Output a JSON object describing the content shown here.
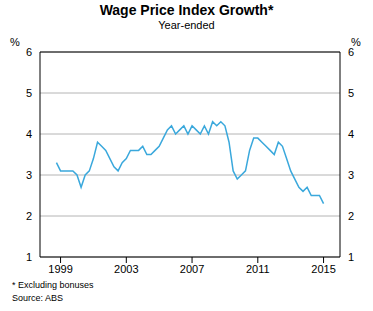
{
  "chart_data": {
    "type": "line",
    "title": "Wage Price Index Growth*",
    "subtitle": "Year-ended",
    "y_label": "%",
    "notes": [
      "* Excluding bonuses",
      "Source: ABS"
    ],
    "x": [
      1998.75,
      1999,
      1999.25,
      1999.5,
      1999.75,
      2000,
      2000.25,
      2000.5,
      2000.75,
      2001,
      2001.25,
      2001.5,
      2001.75,
      2002,
      2002.25,
      2002.5,
      2002.75,
      2003,
      2003.25,
      2003.5,
      2003.75,
      2004,
      2004.25,
      2004.5,
      2004.75,
      2005,
      2005.25,
      2005.5,
      2005.75,
      2006,
      2006.25,
      2006.5,
      2006.75,
      2007,
      2007.25,
      2007.5,
      2007.75,
      2008,
      2008.25,
      2008.5,
      2008.75,
      2009,
      2009.25,
      2009.5,
      2009.75,
      2010,
      2010.25,
      2010.5,
      2010.75,
      2011,
      2011.25,
      2011.5,
      2011.75,
      2012,
      2012.25,
      2012.5,
      2012.75,
      2013,
      2013.25,
      2013.5,
      2013.75,
      2014,
      2014.25,
      2014.5,
      2014.75,
      2015
    ],
    "values": [
      3.3,
      3.1,
      3.1,
      3.1,
      3.1,
      3.0,
      2.7,
      3.0,
      3.1,
      3.4,
      3.8,
      3.7,
      3.6,
      3.4,
      3.2,
      3.1,
      3.3,
      3.4,
      3.6,
      3.6,
      3.6,
      3.7,
      3.5,
      3.5,
      3.6,
      3.7,
      3.9,
      4.1,
      4.2,
      4.0,
      4.1,
      4.2,
      4.0,
      4.2,
      4.1,
      4.0,
      4.2,
      4.0,
      4.3,
      4.2,
      4.3,
      4.2,
      3.8,
      3.1,
      2.9,
      3.0,
      3.1,
      3.6,
      3.9,
      3.9,
      3.8,
      3.7,
      3.6,
      3.5,
      3.8,
      3.7,
      3.4,
      3.1,
      2.9,
      2.7,
      2.6,
      2.7,
      2.5,
      2.5,
      2.5,
      2.3
    ],
    "color": "#3aa8dc",
    "xlim": [
      1997.75,
      2016
    ],
    "xticks": [
      1999,
      2003,
      2007,
      2011,
      2015
    ],
    "ylim": [
      1,
      6
    ],
    "yticks": [
      1,
      2,
      3,
      4,
      5,
      6
    ],
    "grid": true
  }
}
